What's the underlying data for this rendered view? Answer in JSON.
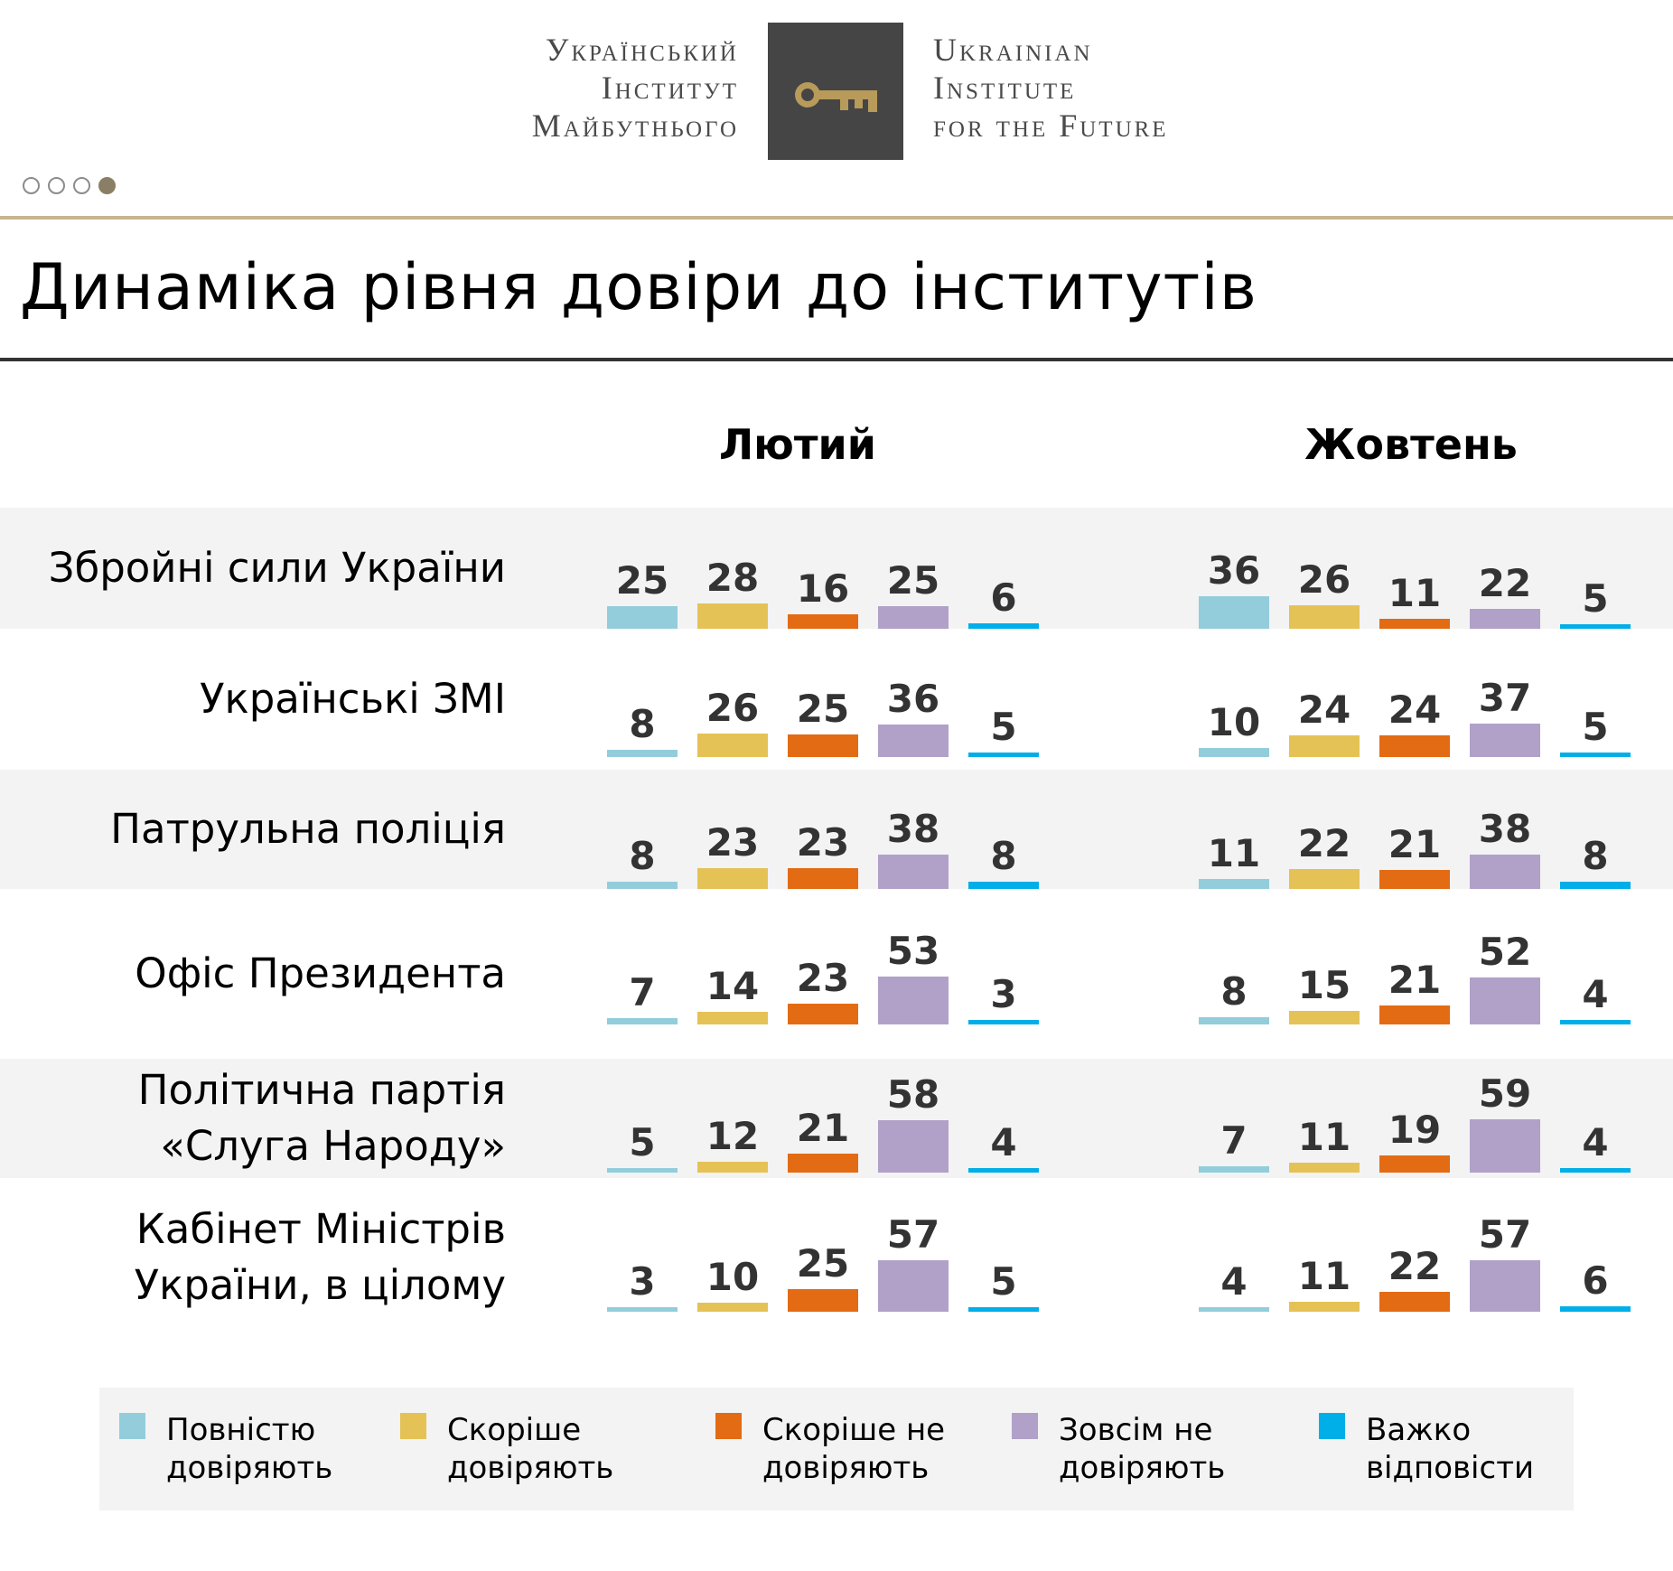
{
  "logo": {
    "ua_lines": [
      "Український",
      "Інститут",
      "Майбутнього"
    ],
    "en_lines": [
      "Ukrainian",
      "Institute",
      "for the Future"
    ],
    "key_icon": "key-icon"
  },
  "pager": {
    "dots": 4,
    "active_index": 3
  },
  "title": "Динаміка рівня довіри до інститутів",
  "colors": [
    "#93cddb",
    "#e5c256",
    "#e36b14",
    "#b1a1c8",
    "#00aee8"
  ],
  "legend": [
    {
      "label": "Повністю довіряють"
    },
    {
      "label": "Скоріше довіряють"
    },
    {
      "label": "Скоріше не довіряють"
    },
    {
      "label": "Зовсім не довіряють"
    },
    {
      "label": "Важко відповісти"
    }
  ],
  "chart_data": {
    "type": "bar",
    "periods": [
      "Лютий",
      "Жовтень"
    ],
    "categories": [
      "Збройні сили України",
      "Українські ЗМІ",
      "Патрульна поліція",
      "Офіс Президента",
      "Політична партія «Слуга Народу»",
      "Кабінет Міністрів України, в цілому"
    ],
    "category_lines": [
      [
        "Збройні сили України"
      ],
      [
        "Українські ЗМІ"
      ],
      [
        "Патрульна поліція"
      ],
      [
        "Офіс Президента"
      ],
      [
        "Політична партія",
        "«Слуга Народу»"
      ],
      [
        "Кабінет Міністрів",
        "України, в цілому"
      ]
    ],
    "series": [
      {
        "name": "Повністю довіряють",
        "color": "#93cddb",
        "values": {
          "Лютий": [
            25,
            8,
            8,
            7,
            5,
            3
          ],
          "Жовтень": [
            36,
            10,
            11,
            8,
            7,
            4
          ]
        }
      },
      {
        "name": "Скоріше довіряють",
        "color": "#e5c256",
        "values": {
          "Лютий": [
            28,
            26,
            23,
            14,
            12,
            10
          ],
          "Жовтень": [
            26,
            24,
            22,
            15,
            11,
            11
          ]
        }
      },
      {
        "name": "Скоріше не довіряють",
        "color": "#e36b14",
        "values": {
          "Лютий": [
            16,
            25,
            23,
            23,
            21,
            25
          ],
          "Жовтень": [
            11,
            24,
            21,
            21,
            19,
            22
          ]
        }
      },
      {
        "name": "Зовсім не довіряють",
        "color": "#b1a1c8",
        "values": {
          "Лютий": [
            25,
            36,
            38,
            53,
            58,
            57
          ],
          "Жовтень": [
            22,
            37,
            38,
            52,
            59,
            57
          ]
        }
      },
      {
        "name": "Важко відповісти",
        "color": "#00aee8",
        "values": {
          "Лютий": [
            6,
            5,
            8,
            3,
            4,
            5
          ],
          "Жовтень": [
            5,
            5,
            8,
            4,
            4,
            6
          ]
        }
      }
    ],
    "ylim": [
      0,
      60
    ],
    "grid": false,
    "legend_position": "bottom"
  }
}
